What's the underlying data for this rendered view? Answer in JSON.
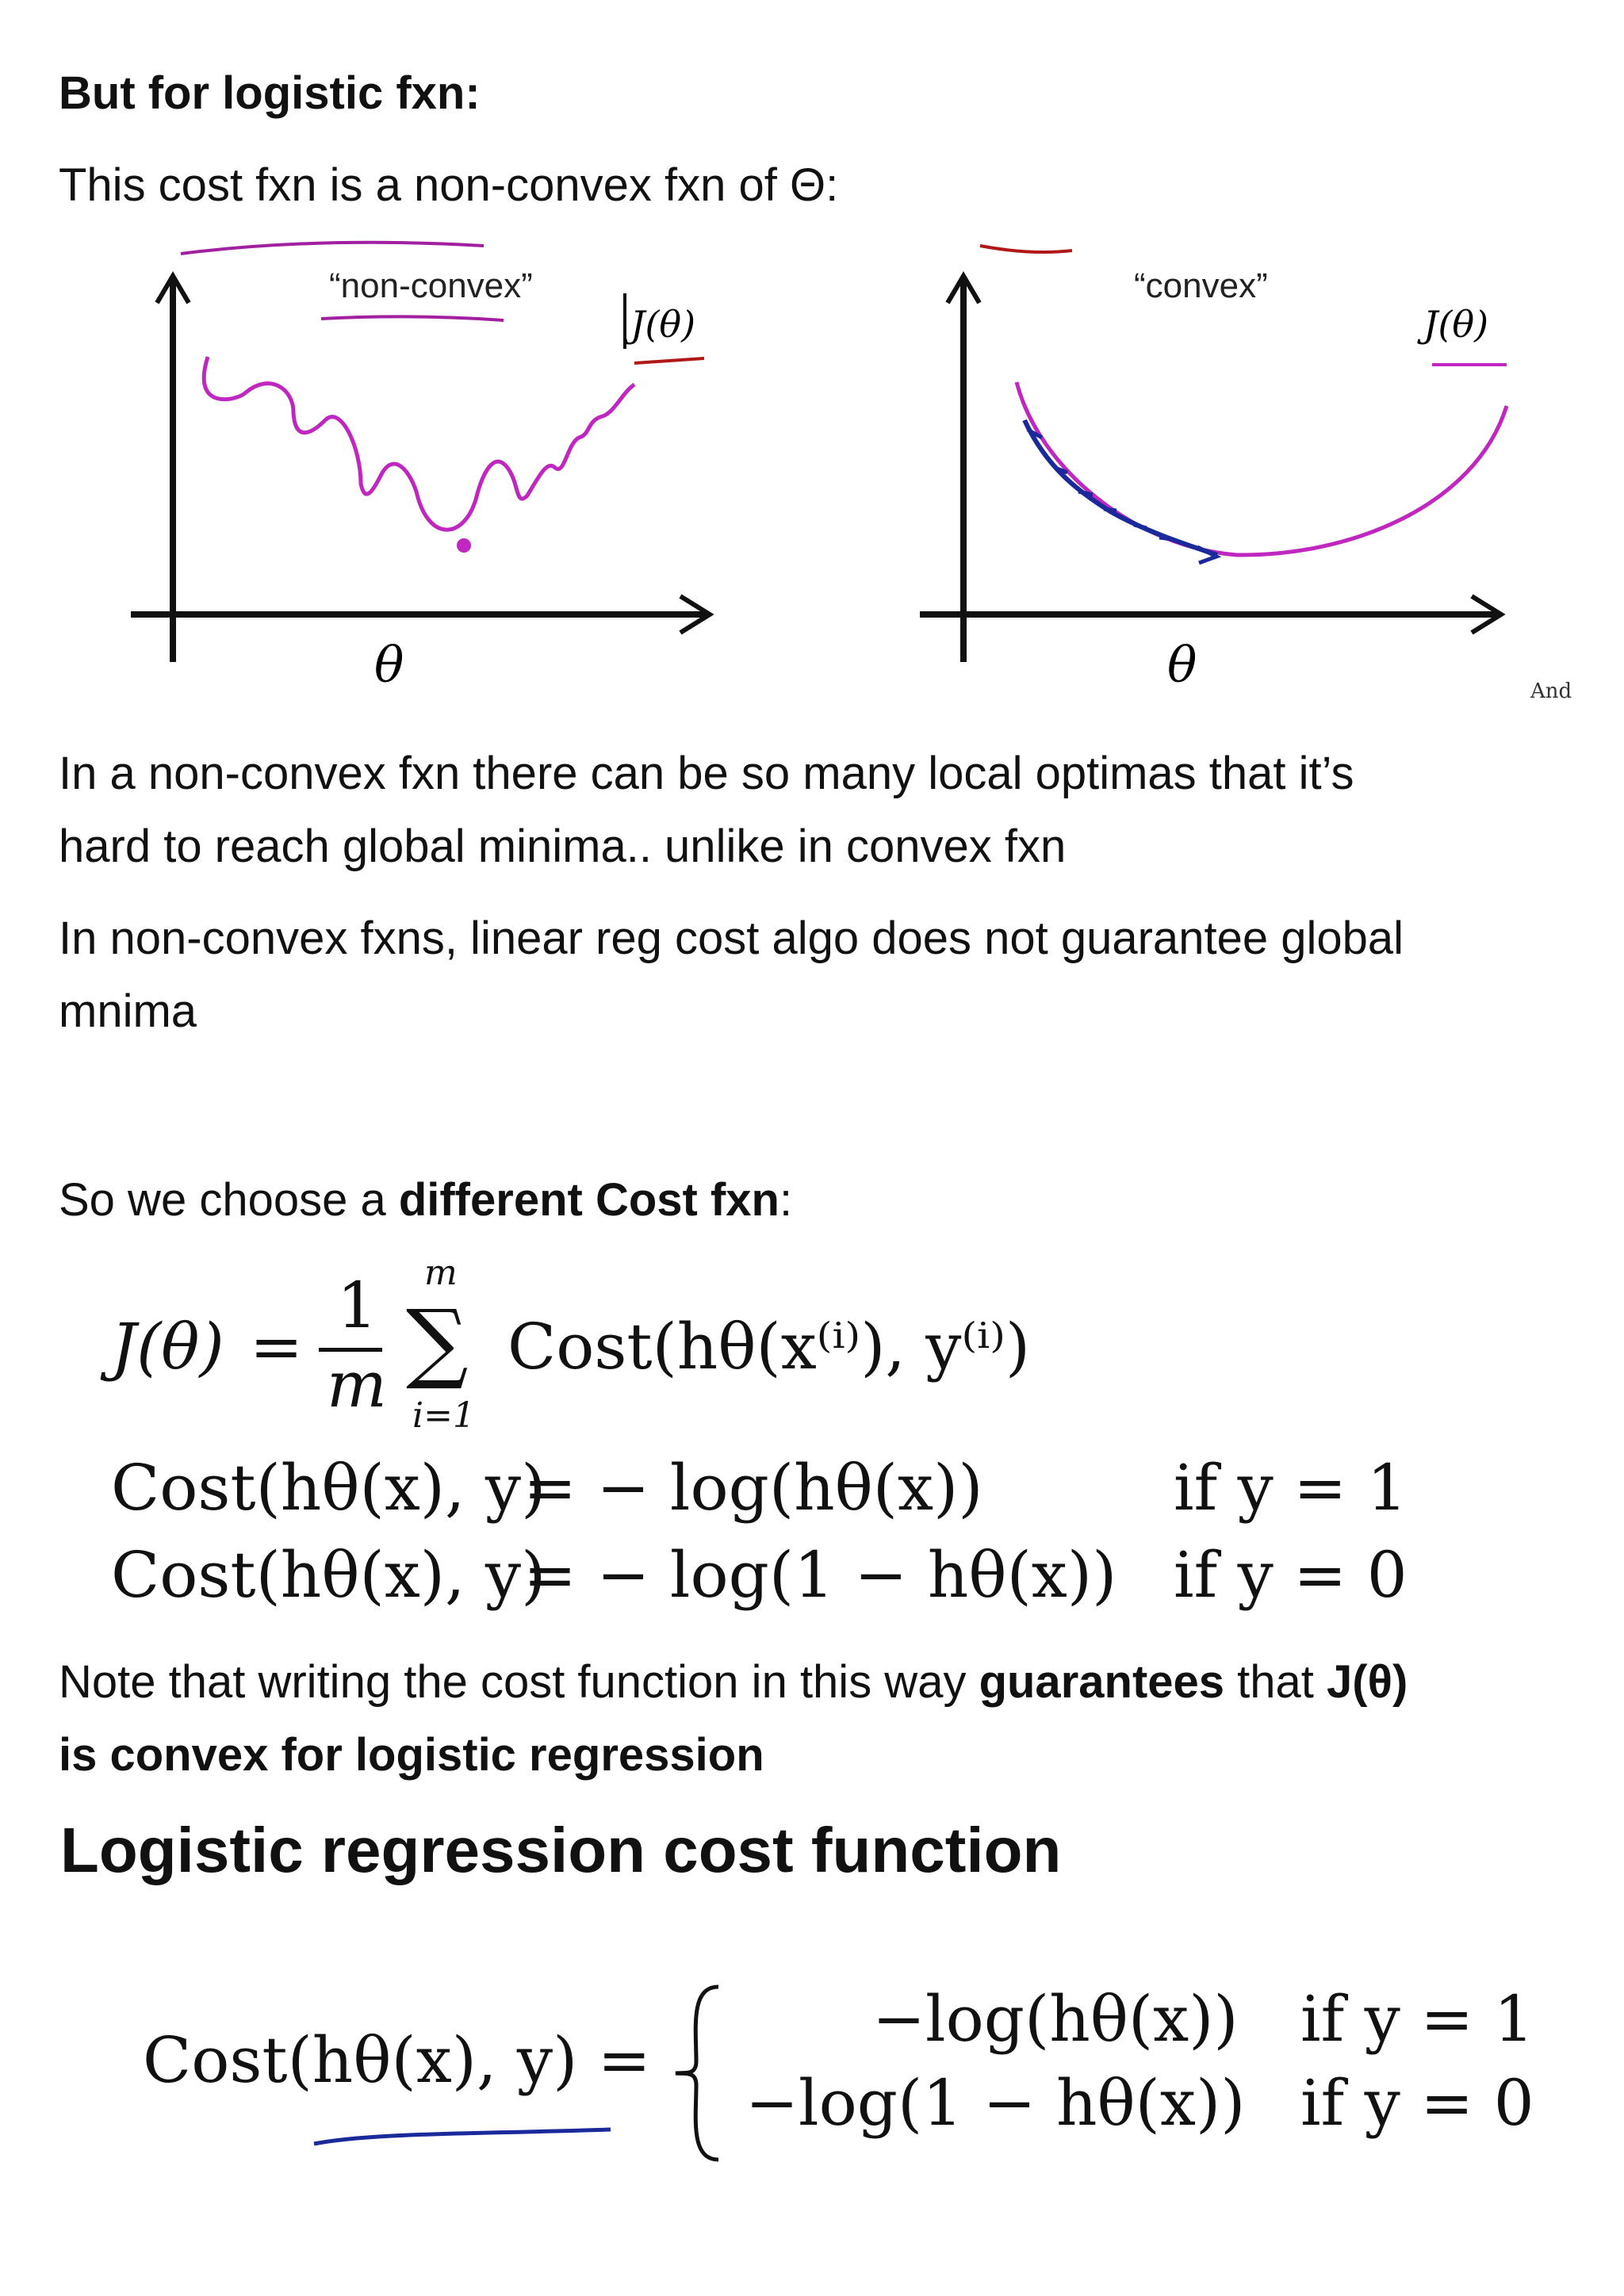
{
  "heading1": "But for logistic fxn:",
  "line1": "This cost fxn is a non-convex fxn of Θ:",
  "figure_left": {
    "label": "“non-convex”",
    "curve_label": "J(θ)",
    "axis_label": "θ"
  },
  "figure_right": {
    "label": "“convex”",
    "curve_label": "J(θ)",
    "axis_label": "θ",
    "tag": "And"
  },
  "para1_line1": "In a non-convex fxn there can be so many local optimas that it’s",
  "para1_line2": "hard to reach global minima.. unlike in convex fxn",
  "para2_line1": "In non-convex fxns, linear reg cost algo does not guarantee global",
  "para2_line2": "mnima",
  "choose": {
    "prefix": "So we choose a ",
    "bold": "different Cost fxn",
    "suffix": ":"
  },
  "eq1": {
    "lhs": "J(θ)",
    "eq": "=",
    "frac_num": "1",
    "frac_den": "m",
    "sum_top": "m",
    "sum_sym": "∑",
    "sum_bottom": "i=1",
    "body": "Cost(hθ(x⁽ⁱ⁾), y⁽ⁱ⁾)"
  },
  "eq2": {
    "lhs": "Cost(hθ(x), y)",
    "rhs": "= − log(hθ(x))",
    "cond": "if y = 1"
  },
  "eq3": {
    "lhs": "Cost(hθ(x), y)",
    "rhs": "= − log(1 − hθ(x))",
    "cond": "if y = 0"
  },
  "note": {
    "prefix": "Note that writing the cost function in this way ",
    "bold1": "guarantees",
    "mid": " that ",
    "bold2": "J(θ)",
    "line2_bold": "is convex for logistic regression"
  },
  "heading2": "Logistic regression cost function",
  "eq4": {
    "lhs": "Cost(hθ(x), y) =",
    "case1": "−log(hθ(x))",
    "case1_cond": "if y = 1",
    "case2": "−log(1 − hθ(x))",
    "case2_cond": "if y = 0"
  },
  "colors": {
    "curve": "#c026c0",
    "annotation_red": "#b01818",
    "annotation_blue": "#1a2a9a",
    "text": "#111111"
  }
}
